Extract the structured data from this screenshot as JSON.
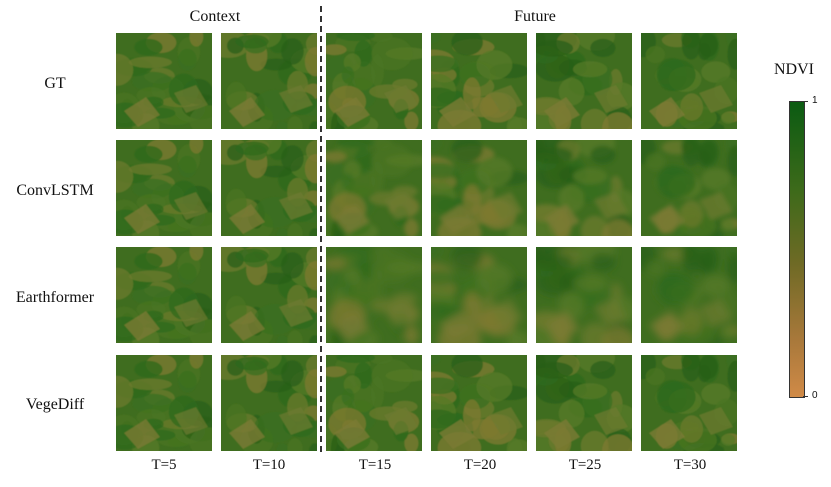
{
  "headers": {
    "context": "Context",
    "future": "Future"
  },
  "rows": [
    "GT",
    "ConvLSTM",
    "Earthformer",
    "VegeDiff"
  ],
  "timesteps": [
    "T=5",
    "T=10",
    "T=15",
    "T=20",
    "T=25",
    "T=30"
  ],
  "colorbar": {
    "title": "NDVI",
    "max_label": "1",
    "min_label": "0",
    "top_color": "#0b5b12",
    "bottom_color": "#d08a47"
  }
}
